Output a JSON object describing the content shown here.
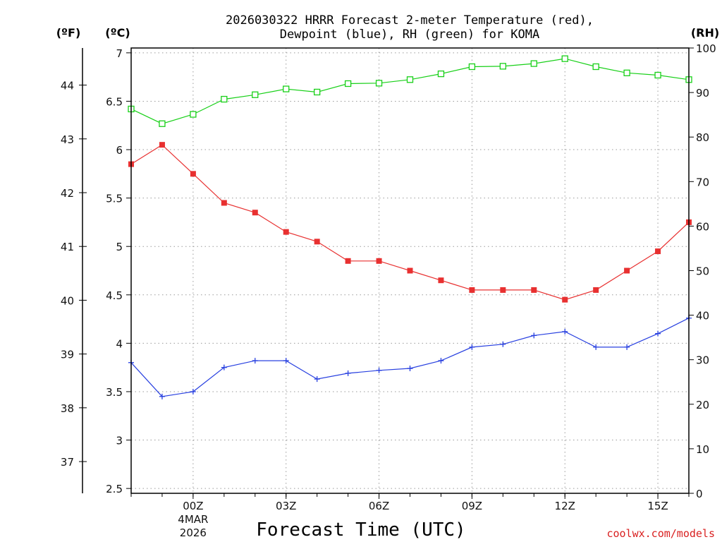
{
  "chart_data": {
    "type": "line",
    "title_line1": "2026030322 HRRR Forecast 2-meter Temperature (red),",
    "title_line2": "Dewpoint (blue), RH (green) for KOMA",
    "xlabel": "Forecast Time (UTC)",
    "credit": "coolwx.com/models",
    "unit_f": "(ºF)",
    "unit_c": "(ºC)",
    "unit_rh": "(RH)",
    "x_hours": [
      -2,
      -1,
      0,
      1,
      2,
      3,
      4,
      5,
      6,
      7,
      8,
      9,
      10,
      11,
      12,
      13,
      14,
      15,
      16
    ],
    "xlim": [
      -2,
      16
    ],
    "x_ticks": [
      {
        "hour": 0,
        "label": "00Z",
        "date": "4MAR",
        "year": "2026"
      },
      {
        "hour": 3,
        "label": "03Z"
      },
      {
        "hour": 6,
        "label": "06Z"
      },
      {
        "hour": 9,
        "label": "09Z"
      },
      {
        "hour": 12,
        "label": "12Z"
      },
      {
        "hour": 15,
        "label": "15Z"
      }
    ],
    "ylim_c": [
      2.45,
      7.05
    ],
    "y_ticks_c": [
      "2.5",
      "3",
      "3.5",
      "4",
      "4.5",
      "5",
      "5.5",
      "6",
      "6.5",
      "7"
    ],
    "y_ticks_f": [
      "37",
      "38",
      "39",
      "40",
      "41",
      "42",
      "43",
      "44"
    ],
    "ylim_rh": [
      0,
      100
    ],
    "y_ticks_rh": [
      "0",
      "10",
      "20",
      "30",
      "40",
      "50",
      "60",
      "70",
      "80",
      "90",
      "100"
    ],
    "colors": {
      "temperature": "#e83030",
      "dewpoint": "#2840e0",
      "rh": "#18d018"
    },
    "series": [
      {
        "name": "Temperature",
        "unit": "C",
        "values": [
          5.85,
          6.05,
          5.75,
          5.45,
          5.35,
          5.15,
          5.05,
          4.85,
          4.85,
          4.75,
          4.65,
          4.55,
          4.55,
          4.55,
          4.45,
          4.55,
          4.75,
          4.95,
          5.25
        ]
      },
      {
        "name": "Dewpoint",
        "unit": "C",
        "values": [
          3.8,
          3.45,
          3.5,
          3.75,
          3.82,
          3.82,
          3.63,
          3.69,
          3.72,
          3.74,
          3.82,
          3.96,
          3.99,
          4.08,
          4.12,
          3.96,
          3.96,
          4.1,
          4.26
        ]
      },
      {
        "name": "RH",
        "unit": "%",
        "values": [
          86.3,
          83.0,
          85.1,
          88.5,
          89.5,
          90.8,
          90.1,
          92.0,
          92.1,
          92.9,
          94.2,
          95.8,
          95.9,
          96.5,
          97.6,
          95.8,
          94.4,
          93.9,
          92.9
        ]
      }
    ]
  }
}
